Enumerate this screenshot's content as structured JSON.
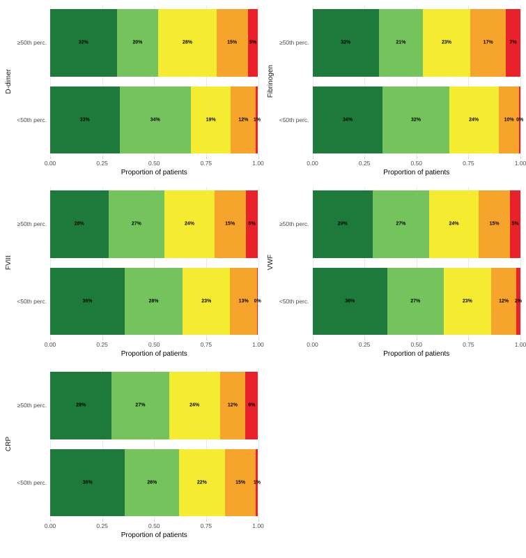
{
  "figure": {
    "background": "#ffffff",
    "gridline_color": "#e9e9e9",
    "segment_colors": [
      "#1d7a3b",
      "#74c35c",
      "#f5ec31",
      "#f7a42d",
      "#e8212b"
    ]
  },
  "chart_data": [
    {
      "type": "bar",
      "stacked": true,
      "orientation": "horizontal",
      "title": "D-dimer",
      "categories": [
        "≥50th perc.",
        "<50th perc."
      ],
      "values": [
        [
          32,
          20,
          28,
          15,
          5
        ],
        [
          33,
          34,
          19,
          12,
          1
        ]
      ],
      "series_colors": [
        "#1d7a3b",
        "#74c35c",
        "#f5ec31",
        "#f7a42d",
        "#e8212b"
      ],
      "xlabel": "Proportion of patients",
      "xticks": [
        "0.00",
        "0.25",
        "0.50",
        "0.75",
        "1.00"
      ],
      "xlim": [
        0,
        1
      ],
      "grid": true,
      "legend": "none"
    },
    {
      "type": "bar",
      "stacked": true,
      "orientation": "horizontal",
      "title": "Fibrinogen",
      "categories": [
        "≥50th perc.",
        "<50th perc."
      ],
      "values": [
        [
          32,
          21,
          23,
          17,
          7
        ],
        [
          34,
          32,
          24,
          10,
          0
        ]
      ],
      "series_colors": [
        "#1d7a3b",
        "#74c35c",
        "#f5ec31",
        "#f7a42d",
        "#e8212b"
      ],
      "xlabel": "Proportion of patients",
      "xticks": [
        "0.00",
        "0.25",
        "0.50",
        "0.75",
        "1.00"
      ],
      "xlim": [
        0,
        1
      ],
      "grid": true,
      "legend": "none"
    },
    {
      "type": "bar",
      "stacked": true,
      "orientation": "horizontal",
      "title": "FVIII",
      "categories": [
        "≥50th perc.",
        "<50th perc."
      ],
      "values": [
        [
          28,
          27,
          24,
          15,
          6
        ],
        [
          36,
          28,
          23,
          13,
          0
        ]
      ],
      "series_colors": [
        "#1d7a3b",
        "#74c35c",
        "#f5ec31",
        "#f7a42d",
        "#e8212b"
      ],
      "xlabel": "Proportion of patients",
      "xticks": [
        "0.00",
        "0.25",
        "0.50",
        "0.75",
        "1.00"
      ],
      "xlim": [
        0,
        1
      ],
      "grid": true,
      "legend": "none"
    },
    {
      "type": "bar",
      "stacked": true,
      "orientation": "horizontal",
      "title": "VWF",
      "categories": [
        "≥50th perc.",
        "<50th perc."
      ],
      "values": [
        [
          29,
          27,
          24,
          15,
          5
        ],
        [
          36,
          27,
          23,
          12,
          2
        ]
      ],
      "series_colors": [
        "#1d7a3b",
        "#74c35c",
        "#f5ec31",
        "#f7a42d",
        "#e8212b"
      ],
      "xlabel": "Proportion of patients",
      "xticks": [
        "0.00",
        "0.25",
        "0.50",
        "0.75",
        "1.00"
      ],
      "xlim": [
        0,
        1
      ],
      "grid": true,
      "legend": "none"
    },
    {
      "type": "bar",
      "stacked": true,
      "orientation": "horizontal",
      "title": "CRP",
      "categories": [
        "≥50th perc.",
        "<50th perc."
      ],
      "values": [
        [
          29,
          27,
          24,
          12,
          6
        ],
        [
          36,
          26,
          22,
          15,
          1
        ]
      ],
      "series_colors": [
        "#1d7a3b",
        "#74c35c",
        "#f5ec31",
        "#f7a42d",
        "#e8212b"
      ],
      "xlabel": "Proportion of patients",
      "xticks": [
        "0.00",
        "0.25",
        "0.50",
        "0.75",
        "1.00"
      ],
      "xlim": [
        0,
        1
      ],
      "grid": true,
      "legend": "none"
    }
  ]
}
